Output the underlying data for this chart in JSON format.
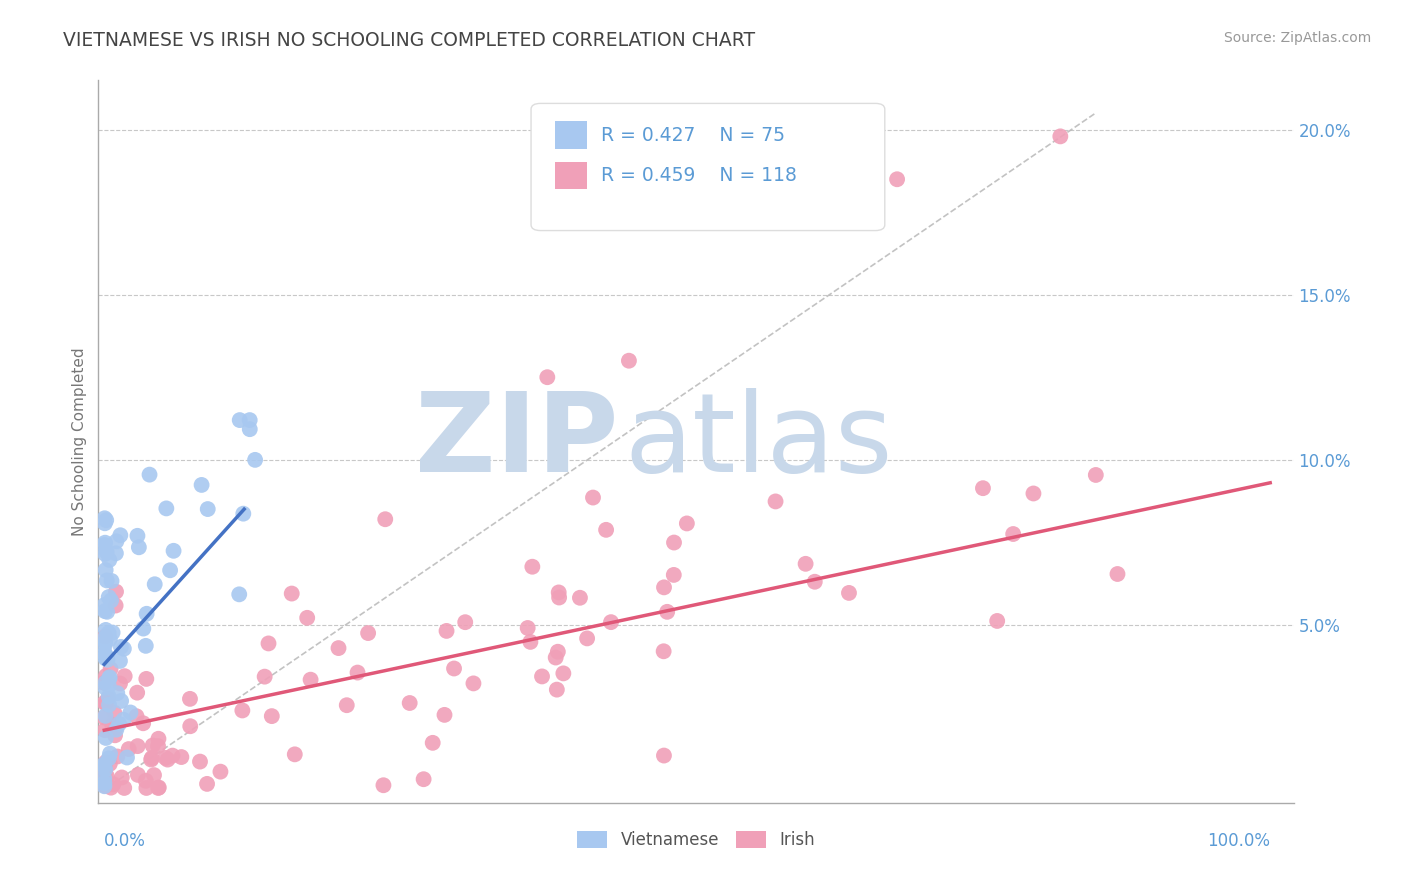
{
  "title": "VIETNAMESE VS IRISH NO SCHOOLING COMPLETED CORRELATION CHART",
  "source": "Source: ZipAtlas.com",
  "ylabel": "No Schooling Completed",
  "watermark_zip": "ZIP",
  "watermark_atlas": "atlas",
  "watermark_color": "#c8d8ea",
  "background_color": "#ffffff",
  "grid_color": "#c8c8c8",
  "title_color": "#444444",
  "axis_label_color": "#5b9bd5",
  "vietnamese_color": "#a8c8f0",
  "irish_color": "#f0a0b8",
  "vietnamese_line_color": "#4472c4",
  "irish_line_color": "#e05878",
  "trend_line_color": "#b8b8b8",
  "viet_line_x0": 0.0,
  "viet_line_x1": 0.12,
  "viet_line_y0": 0.038,
  "viet_line_y1": 0.085,
  "irish_line_x0": 0.0,
  "irish_line_x1": 1.0,
  "irish_line_y0": 0.018,
  "irish_line_y1": 0.093,
  "trend_x0": 0.0,
  "trend_y0": 0.0,
  "trend_x1": 0.85,
  "trend_y1": 0.205,
  "xlim_min": -0.005,
  "xlim_max": 1.02,
  "ylim_min": -0.004,
  "ylim_max": 0.215,
  "yticks": [
    0.05,
    0.1,
    0.15,
    0.2
  ],
  "ytick_labels": [
    "5.0%",
    "10.0%",
    "15.0%",
    "20.0%"
  ],
  "seed": 123
}
